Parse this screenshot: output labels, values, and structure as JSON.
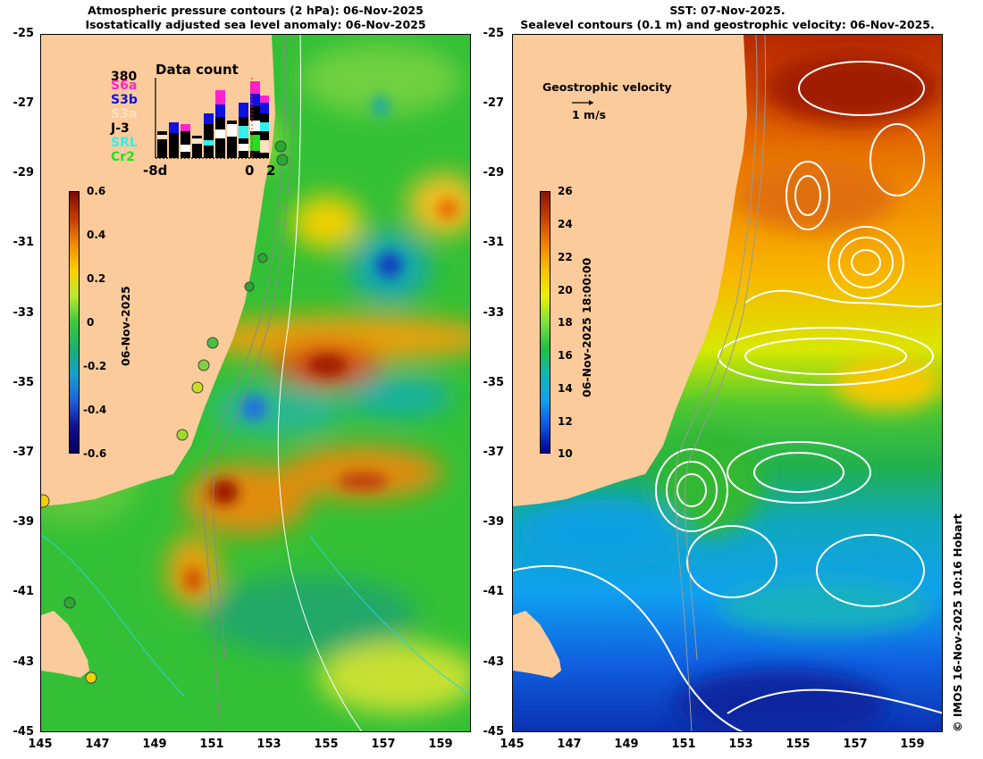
{
  "left_panel": {
    "title_line1": "Atmospheric pressure contours (2 hPa): 06-Nov-2025",
    "title_line2": "Isostatically adjusted sea level anomaly: 06-Nov-2025",
    "colorbar": {
      "ticks": [
        "0.6",
        "0.4",
        "0.2",
        "0",
        "-0.2",
        "-0.4",
        "-0.6"
      ],
      "label": "06-Nov-2025",
      "colors": [
        "#7a0a00",
        "#c53a00",
        "#f08a00",
        "#ffd000",
        "#b8e830",
        "#3cc83c",
        "#18b070",
        "#14a0d0",
        "#2060e0",
        "#101090",
        "#000060"
      ]
    },
    "data_count": {
      "title": "Data count",
      "max": "380",
      "satellites": [
        {
          "name": "S6a",
          "color": "#ff22cc"
        },
        {
          "name": "S3b",
          "color": "#1010e0"
        },
        {
          "name": "S3a",
          "color": "#ffe0c0"
        },
        {
          "name": "J-3",
          "color": "#000000"
        },
        {
          "name": "SRL",
          "color": "#30f0f0"
        },
        {
          "name": "Cr2",
          "color": "#20e020"
        }
      ],
      "x_start": "-8d",
      "x_zero": "0",
      "x_end": "2"
    }
  },
  "right_panel": {
    "title_line1": "SST: 07-Nov-2025.",
    "title_line2": "Sealevel contours (0.1 m) and geostrophic velocity: 06-Nov-2025.",
    "colorbar": {
      "ticks": [
        "26",
        "24",
        "22",
        "20",
        "18",
        "16",
        "14",
        "12",
        "10"
      ],
      "label": "06-Nov-2025 18:00:00",
      "colors": [
        "#8a1500",
        "#c84000",
        "#f08000",
        "#ffc000",
        "#e8f000",
        "#80e040",
        "#20c040",
        "#10b8b0",
        "#10a0f0",
        "#1050e0",
        "#000090"
      ]
    },
    "velocity_legend": {
      "title": "Geostrophic velocity",
      "scale": "1 m/s"
    }
  },
  "axes": {
    "y_ticks": [
      "-25",
      "-27",
      "-29",
      "-31",
      "-33",
      "-35",
      "-37",
      "-39",
      "-41",
      "-43",
      "-45"
    ],
    "x_ticks": [
      "145",
      "147",
      "149",
      "151",
      "153",
      "155",
      "157",
      "159"
    ],
    "lat_range": [
      -25,
      -45
    ],
    "lon_range": [
      145,
      160
    ]
  },
  "credit": "© IMOS 16-Nov-2025 10:16 Hobart",
  "colors": {
    "land": "#fccb9b",
    "sea_green": "#33c036",
    "sst_warm": "#e07010",
    "sst_cold": "#1090e0"
  }
}
